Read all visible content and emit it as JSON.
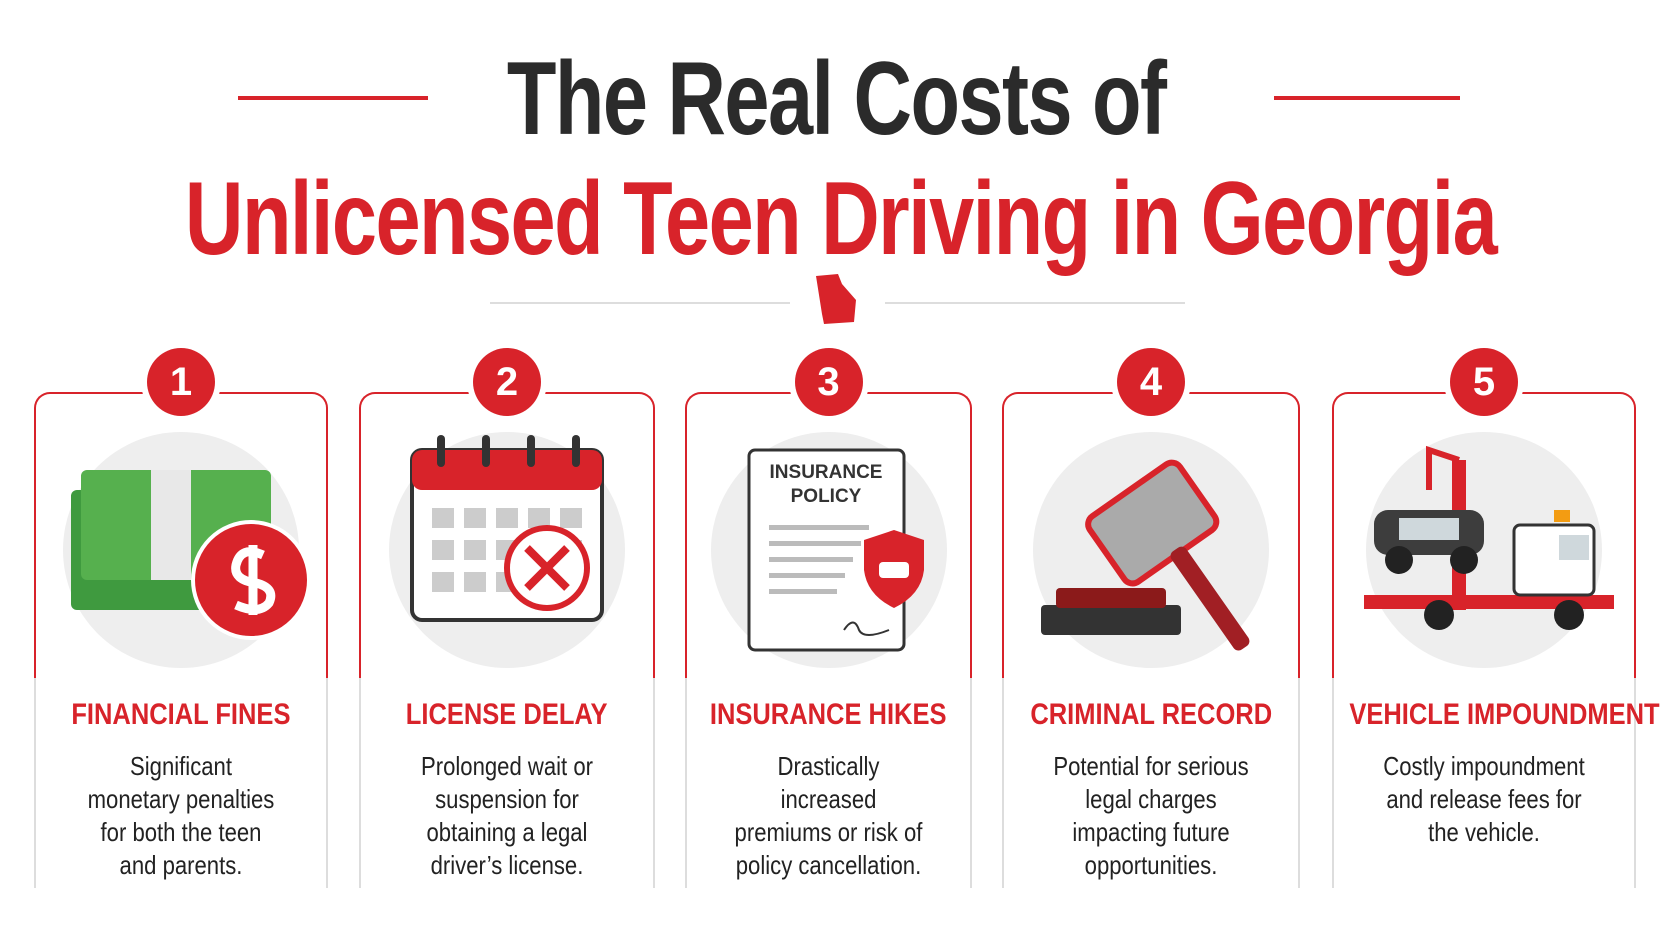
{
  "header": {
    "title_line1": "The Real Costs of",
    "title_line2": "Unlicensed Teen Driving in Georgia"
  },
  "cards": [
    {
      "number": "1",
      "title": "FINANCIAL FINES",
      "description": "Significant monetary penalties for both the teen and parents."
    },
    {
      "number": "2",
      "title": "LICENSE DELAY",
      "description": "Prolonged wait or suspension for obtaining a legal driver’s license."
    },
    {
      "number": "3",
      "title": "INSURANCE HIKES",
      "description": "Drastically increased premiums or risk of policy cancellation.",
      "icon_text": [
        "INSURANCE",
        "POLICY"
      ]
    },
    {
      "number": "4",
      "title": "CRIMINAL RECORD",
      "description": "Potential for serious legal charges impacting future opportunities."
    },
    {
      "number": "5",
      "title": "VEHICLE IMPOUNDMENT",
      "description": "Costly impoundment and release fees for the vehicle."
    }
  ]
}
